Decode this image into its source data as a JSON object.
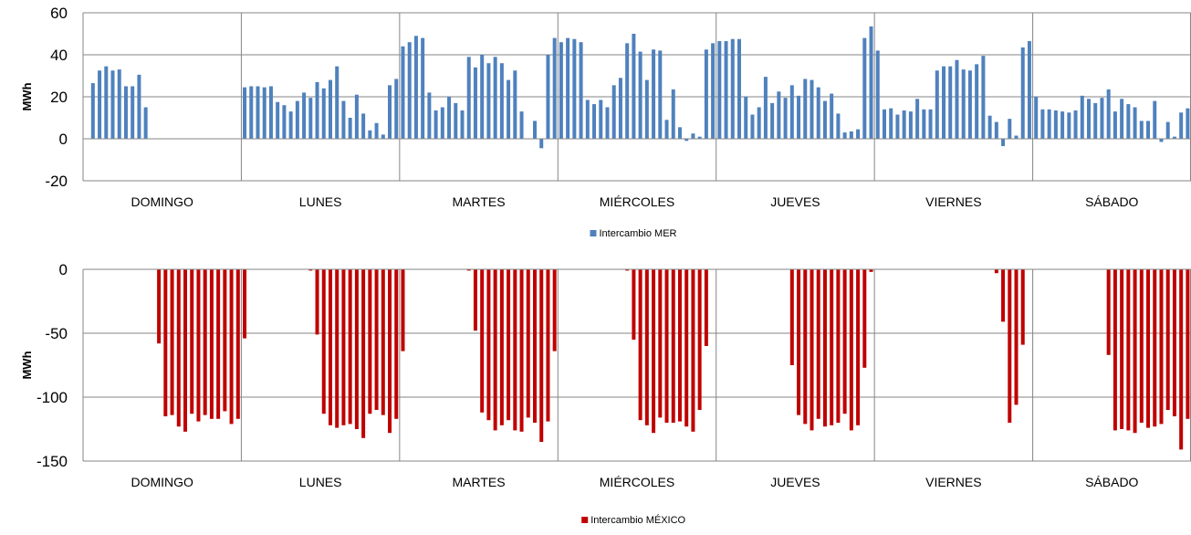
{
  "chart_data": [
    {
      "type": "bar",
      "ylabel": "MWh",
      "ylim": [
        -20,
        60
      ],
      "yticks": [
        "-20",
        "0",
        "20",
        "40",
        "60"
      ],
      "grid": true,
      "legend_position": "bottom-center",
      "day_labels": [
        "DOMINGO",
        "LUNES",
        "MARTES",
        "MIÉRCOLES",
        "JUEVES",
        "VIERNES",
        "SÁBADO"
      ],
      "hours_per_day": 24,
      "series": [
        {
          "name": "Intercambio MER",
          "color": "#4F81BD",
          "values": [
            0,
            26.5,
            32.5,
            34.5,
            32.5,
            33,
            25,
            25,
            30.5,
            15,
            0,
            0,
            0,
            0,
            0,
            0,
            0,
            0,
            0,
            0,
            0,
            0,
            0,
            0,
            24.5,
            25,
            25,
            24.5,
            25,
            17.5,
            16,
            13,
            18,
            22,
            19.5,
            27,
            24,
            28,
            34.5,
            18,
            10,
            21,
            12,
            4,
            7.5,
            2,
            25.5,
            28.5,
            44,
            46,
            49,
            48,
            22,
            13.5,
            15,
            20,
            17,
            13.5,
            39,
            34,
            40,
            36,
            39,
            36,
            28,
            32.5,
            13,
            0,
            8.5,
            -4.5,
            40,
            48,
            46,
            48,
            47.5,
            46,
            18.5,
            16.5,
            18.5,
            15,
            25.5,
            29,
            45.5,
            50,
            41.5,
            28,
            42.5,
            42,
            9,
            23.5,
            5.5,
            -1,
            2.5,
            1,
            42.5,
            45.5,
            46.5,
            46.5,
            47.5,
            47.5,
            20,
            11.5,
            15,
            29.5,
            17,
            22.5,
            19.5,
            25.5,
            20.5,
            28.5,
            28,
            24.5,
            18,
            21.5,
            12,
            3,
            3.5,
            4.5,
            48,
            53.5,
            42,
            14,
            14.5,
            11.5,
            13.5,
            13,
            19,
            14,
            14,
            32.5,
            34.5,
            34.5,
            37.5,
            33,
            32.5,
            35.5,
            39.5,
            11,
            8,
            -3.5,
            9.5,
            1.5,
            43.5,
            46.5,
            20,
            14,
            14,
            13.5,
            13,
            12.5,
            13.5,
            20.5,
            19,
            17,
            19.5,
            23.5,
            13,
            19,
            16.5,
            15,
            8.5,
            8.5,
            18,
            -1.5,
            8,
            1,
            12.5,
            14.5
          ]
        }
      ]
    },
    {
      "type": "bar",
      "ylabel": "MWh",
      "ylim": [
        -150,
        0
      ],
      "yticks": [
        "-150",
        "-100",
        "-50",
        "0"
      ],
      "grid": true,
      "legend_position": "bottom-center",
      "day_labels": [
        "DOMINGO",
        "LUNES",
        "MARTES",
        "MIÉRCOLES",
        "JUEVES",
        "VIERNES",
        "SÁBADO"
      ],
      "hours_per_day": 24,
      "series": [
        {
          "name": "Intercambio MÉXICO",
          "color": "#C00000",
          "values": [
            0,
            0,
            0,
            0,
            0,
            0,
            0,
            0,
            0,
            0,
            0,
            -58,
            -115,
            -114,
            -123,
            -127,
            -113,
            -119,
            -114,
            -117,
            -117,
            -111,
            -121,
            -117,
            -54,
            0,
            0,
            0,
            0,
            0,
            0,
            0,
            0,
            0,
            -1,
            -51,
            -113,
            -122,
            -124,
            -122,
            -121,
            -125,
            -132,
            -113,
            -110,
            -114,
            -128,
            -117,
            -64,
            0,
            0,
            0,
            0,
            0,
            0,
            0,
            0,
            0,
            -1,
            -48,
            -112,
            -118,
            -126,
            -122,
            -118,
            -126,
            -127,
            -116,
            -120,
            -135,
            -119,
            -64,
            0,
            0,
            0,
            0,
            0,
            0,
            0,
            0,
            0,
            0,
            -1,
            -55,
            -118,
            -122,
            -128,
            -116,
            -120,
            -120,
            -119,
            -123,
            -127,
            -110,
            -60,
            0,
            0,
            0,
            0,
            0,
            0,
            0,
            0,
            0,
            0,
            0,
            0,
            -75,
            -114,
            -121,
            -126,
            -117,
            -123,
            -122,
            -120,
            -113,
            -126,
            -122,
            -77,
            -2,
            0,
            0,
            0,
            0,
            0,
            0,
            0,
            0,
            0,
            0,
            0,
            0,
            0,
            0,
            0,
            0,
            0,
            0,
            -3,
            -41,
            -120,
            -106,
            -59,
            0,
            0,
            0,
            0,
            0,
            0,
            0,
            0,
            0,
            0,
            0,
            0,
            -67,
            -126,
            -125,
            -126,
            -128,
            -120,
            -124,
            -123,
            -121,
            -110,
            -115,
            -141,
            -117
          ]
        }
      ]
    }
  ]
}
